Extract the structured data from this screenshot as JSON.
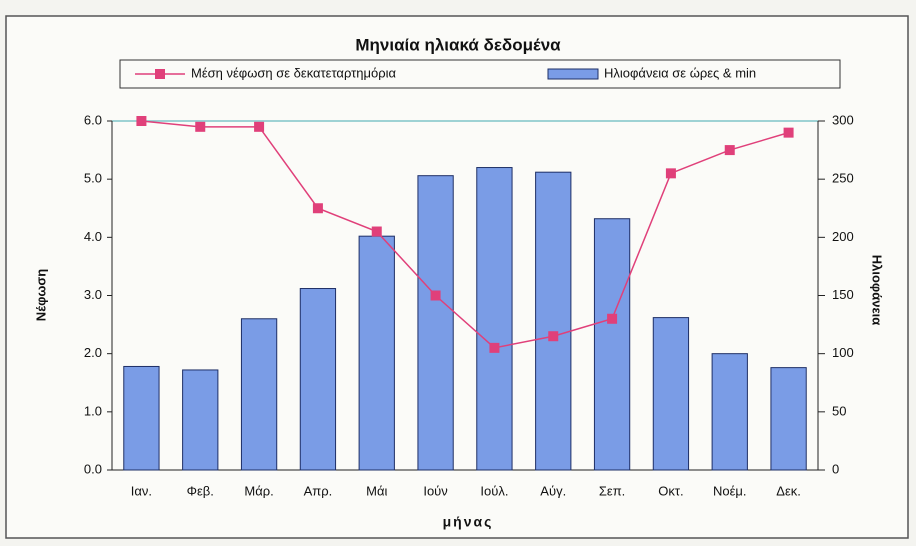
{
  "chart_data": {
    "type": "bar",
    "title": "Μηνιαία ηλιακά δεδομένα",
    "xlabel": "μήνας",
    "ylabel": "Νέφωση",
    "y2label": "Ηλιοφάνεια",
    "categories": [
      "Ιαν.",
      "Φεβ.",
      "Μάρ.",
      "Απρ.",
      "Μάι",
      "Ιούν",
      "Ιούλ.",
      "Αύγ.",
      "Σεπ.",
      "Οκτ.",
      "Νοέμ.",
      "Δεκ."
    ],
    "series": [
      {
        "name": "Μέση νέφωση σε δεκατεταρτημόρια",
        "type": "line",
        "color": "#e0407a",
        "values": [
          6.0,
          5.9,
          5.9,
          4.5,
          4.1,
          3.0,
          2.1,
          2.3,
          2.6,
          5.1,
          5.5,
          5.8
        ]
      },
      {
        "name": "Ηλιοφάνεια σε ώρες & min",
        "type": "bar",
        "axis": "y2",
        "color": "#7a9ce6",
        "values": [
          89,
          86,
          130,
          156,
          201,
          253,
          260,
          256,
          216,
          131,
          100,
          88
        ]
      }
    ],
    "ylim": [
      0,
      6
    ],
    "yticks": [
      {
        "value": 0,
        "label": "0.0"
      },
      {
        "value": 1,
        "label": "1.0"
      },
      {
        "value": 2,
        "label": "2.0"
      },
      {
        "value": 3,
        "label": "3.0"
      },
      {
        "value": 4,
        "label": "4.0"
      },
      {
        "value": 5,
        "label": "5.0"
      },
      {
        "value": 6,
        "label": "6.0"
      }
    ],
    "y2lim": [
      0,
      300
    ],
    "y2ticks": [
      0,
      50,
      100,
      150,
      200,
      250,
      300
    ]
  }
}
